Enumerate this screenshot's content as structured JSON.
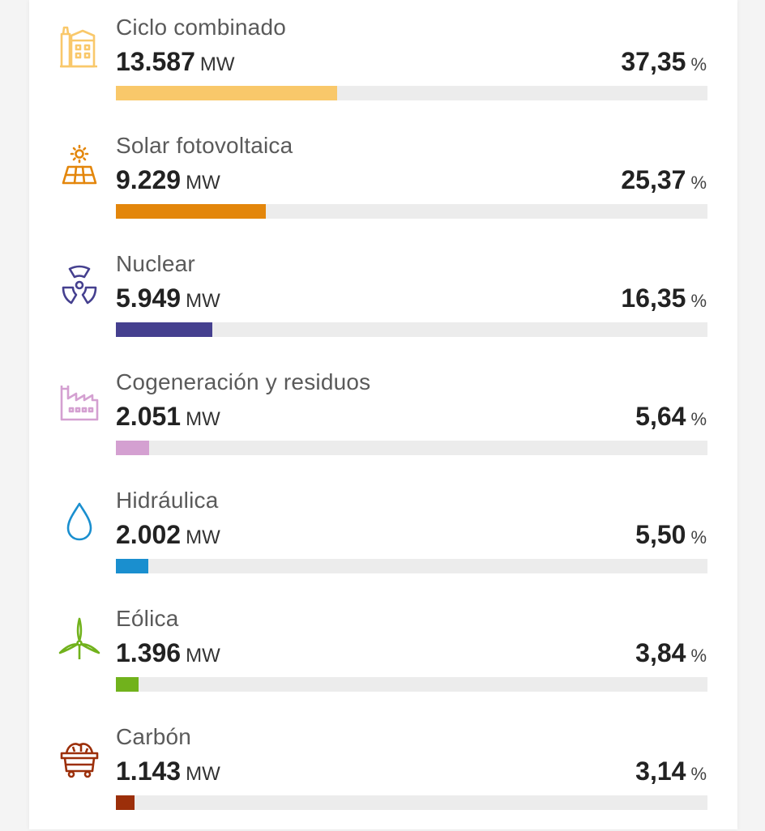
{
  "items": [
    {
      "label": "Ciclo combinado",
      "value": "13.587",
      "unit": "MW",
      "percent": "37,35",
      "percent_unit": "%",
      "share": 0.3735,
      "color": "#f9c86a",
      "icon": "combined-cycle-plant-icon"
    },
    {
      "label": "Solar fotovoltaica",
      "value": "9.229",
      "unit": "MW",
      "percent": "25,37",
      "percent_unit": "%",
      "share": 0.2537,
      "color": "#e3860b",
      "icon": "solar-panel-icon"
    },
    {
      "label": "Nuclear",
      "value": "5.949",
      "unit": "MW",
      "percent": "16,35",
      "percent_unit": "%",
      "share": 0.1635,
      "color": "#45408f",
      "icon": "nuclear-icon"
    },
    {
      "label": "Cogeneración y residuos",
      "value": "2.051",
      "unit": "MW",
      "percent": "5,64",
      "percent_unit": "%",
      "share": 0.0564,
      "color": "#d4a0d1",
      "icon": "factory-icon"
    },
    {
      "label": "Hidráulica",
      "value": "2.002",
      "unit": "MW",
      "percent": "5,50",
      "percent_unit": "%",
      "share": 0.055,
      "color": "#1a8fcf",
      "icon": "water-drop-icon"
    },
    {
      "label": "Eólica",
      "value": "1.396",
      "unit": "MW",
      "percent": "3,84",
      "percent_unit": "%",
      "share": 0.0384,
      "color": "#71b21c",
      "icon": "wind-turbine-icon"
    },
    {
      "label": "Carbón",
      "value": "1.143",
      "unit": "MW",
      "percent": "3,14",
      "percent_unit": "%",
      "share": 0.0314,
      "color": "#9c2f0a",
      "icon": "coal-cart-icon"
    }
  ]
}
